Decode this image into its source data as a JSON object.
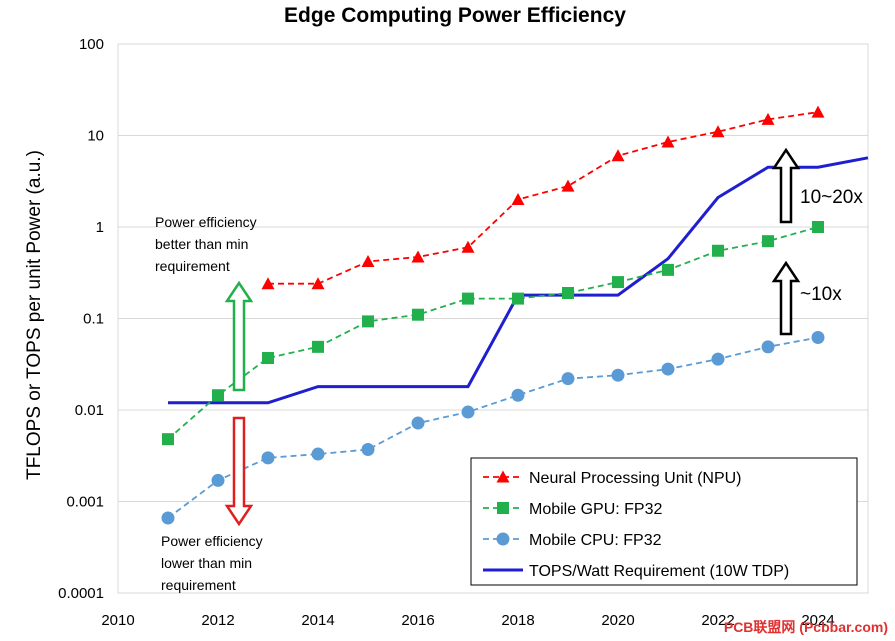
{
  "chart_data": {
    "type": "line",
    "title": "Edge Computing Power Efficiency",
    "xlabel": "",
    "ylabel": "TFLOPS or TOPS per unit Power (a.u.)",
    "xlim": [
      2010,
      2025
    ],
    "ylim": [
      0.0001,
      100
    ],
    "yscale": "log",
    "x_ticks": [
      "2010",
      "2012",
      "2014",
      "2016",
      "2018",
      "2020",
      "2022",
      "2024"
    ],
    "y_ticks": [
      "100",
      "10",
      "1",
      "0.1",
      "0.01",
      "0.001",
      "0.0001"
    ],
    "legend_position": "bottom-right",
    "series": [
      {
        "name": "Neural Processing Unit (NPU)",
        "style": "dashed",
        "marker": "triangle",
        "color": "#ff0000",
        "x": [
          2013,
          2014,
          2015,
          2016,
          2017,
          2018,
          2019,
          2020,
          2021,
          2022,
          2023,
          2024
        ],
        "values": [
          0.24,
          0.24,
          0.42,
          0.47,
          0.6,
          2.0,
          2.8,
          6.0,
          8.5,
          11,
          15,
          18
        ]
      },
      {
        "name": "Mobile GPU: FP32",
        "style": "dashed",
        "marker": "square",
        "color": "#22b04c",
        "x": [
          2011,
          2012,
          2013,
          2014,
          2015,
          2016,
          2017,
          2018,
          2019,
          2020,
          2021,
          2022,
          2023,
          2024
        ],
        "values": [
          0.0048,
          0.0145,
          0.037,
          0.049,
          0.093,
          0.11,
          0.165,
          0.165,
          0.19,
          0.25,
          0.34,
          0.55,
          0.7,
          1.0
        ]
      },
      {
        "name": "Mobile CPU: FP32",
        "style": "dashed",
        "marker": "circle",
        "color": "#5b9bd5",
        "x": [
          2011,
          2012,
          2013,
          2014,
          2015,
          2016,
          2017,
          2018,
          2019,
          2020,
          2021,
          2022,
          2023,
          2024
        ],
        "values": [
          0.00066,
          0.0017,
          0.003,
          0.0033,
          0.0037,
          0.0072,
          0.0095,
          0.0145,
          0.022,
          0.024,
          0.028,
          0.036,
          0.049,
          0.062
        ]
      },
      {
        "name": "TOPS/Watt Requirement (10W TDP)",
        "style": "solid",
        "marker": "none",
        "color": "#1f1fcf",
        "x": [
          2011,
          2013,
          2014,
          2017,
          2018,
          2020,
          2021,
          2022,
          2023,
          2024,
          2025
        ],
        "values": [
          0.012,
          0.012,
          0.018,
          0.018,
          0.18,
          0.18,
          0.45,
          2.1,
          4.5,
          4.5,
          5.7
        ]
      }
    ],
    "annotations": [
      {
        "text_lines": [
          "Power efficiency",
          "better than min",
          "requirement"
        ],
        "arrow": "up",
        "color": "#22b04c"
      },
      {
        "text_lines": [
          "Power efficiency",
          "lower than min",
          "requirement"
        ],
        "arrow": "down",
        "color": "#e02020"
      },
      {
        "text": "10~20x",
        "arrow": "up",
        "color": "#000000"
      },
      {
        "text": "~10x",
        "arrow": "up",
        "color": "#000000"
      }
    ]
  },
  "watermark": "PCB联盟网 (Pcbbar.com)"
}
